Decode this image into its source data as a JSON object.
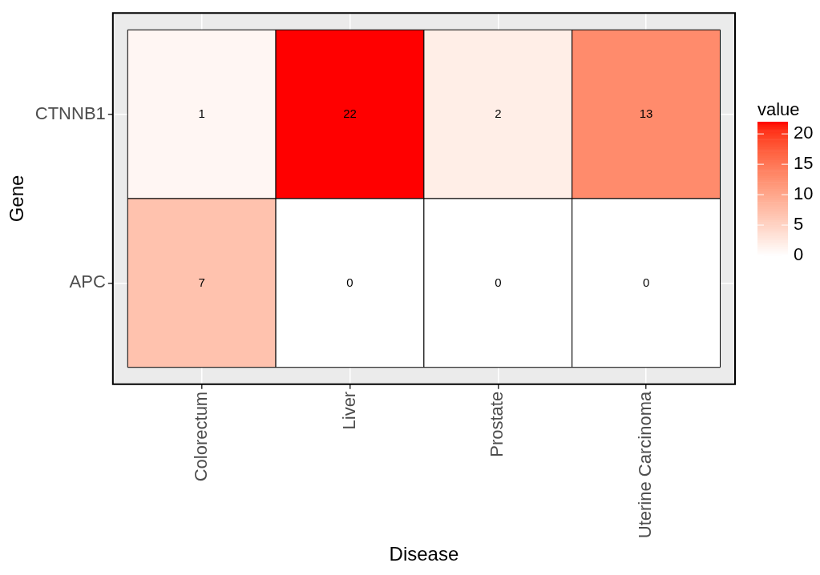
{
  "chart_data": {
    "type": "heatmap",
    "xlabel": "Disease",
    "ylabel": "Gene",
    "clabel": "value",
    "categories": [
      "Colorectum",
      "Liver",
      "Prostate",
      "Uterine Carcinoma"
    ],
    "y_categories": [
      "CTNNB1",
      "APC"
    ],
    "cells": [
      [
        1,
        22,
        2,
        13
      ],
      [
        7,
        0,
        0,
        0
      ]
    ],
    "clim": [
      0,
      22
    ],
    "cticks": [
      0,
      5,
      10,
      15,
      20
    ],
    "grid": true,
    "data_labels": true
  }
}
